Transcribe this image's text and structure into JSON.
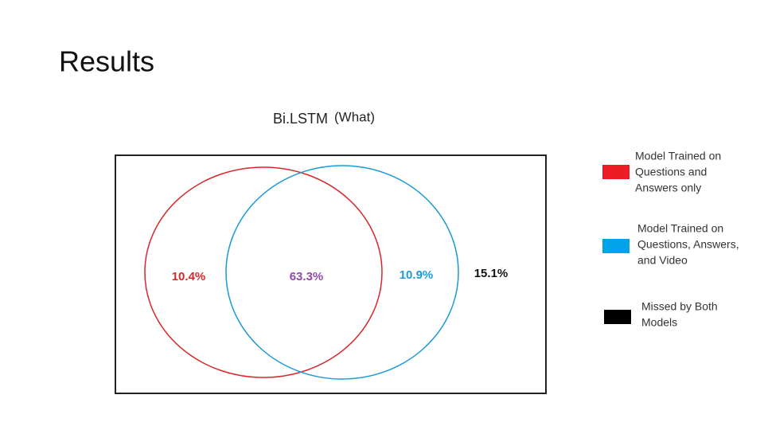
{
  "slide": {
    "title": "Results"
  },
  "diagram": {
    "title": "Bi.LSTM",
    "subtitle": "(What)",
    "regions": [
      {
        "label": "10.4%",
        "color": "#d9262b"
      },
      {
        "label": "63.3%",
        "color": "#8e4ba8"
      },
      {
        "label": "10.9%",
        "color": "#1a9ad6"
      },
      {
        "label": "15.1%",
        "color": "#111111"
      }
    ],
    "legend": [
      {
        "lines": [
          "Model Trained on",
          "Questions and",
          "Answers only"
        ],
        "color": "#ed1c24"
      },
      {
        "lines": [
          "Model Trained on",
          "Questions, Answers,",
          "and Video"
        ],
        "color": "#00a2e8"
      },
      {
        "lines": [
          "Missed by Both",
          "Models"
        ],
        "color": "#000000"
      }
    ]
  }
}
